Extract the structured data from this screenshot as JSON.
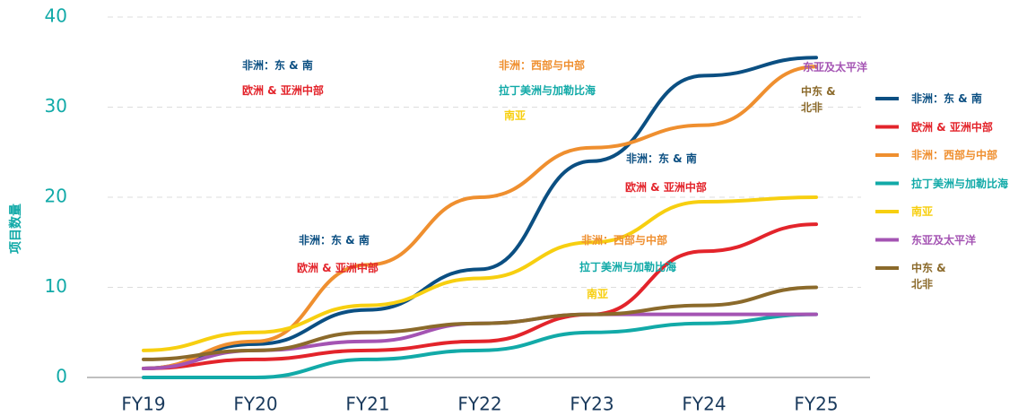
{
  "chart_data": {
    "type": "line",
    "y_label": "项目数量",
    "categories": [
      "FY19",
      "FY20",
      "FY21",
      "FY22",
      "FY23",
      "FY24",
      "FY25"
    ],
    "ylim": [
      0,
      40
    ],
    "yticks": [
      0,
      10,
      20,
      30,
      40
    ],
    "grid": true,
    "legend": "right",
    "series": [
      {
        "name": "非洲：东 & 南",
        "color": "#0b4f82",
        "values": [
          1,
          3.7,
          7.5,
          12,
          24,
          33.5,
          35.5
        ]
      },
      {
        "name": "欧洲 & 亚洲中部",
        "color": "#e3242b",
        "values": [
          1,
          2,
          3,
          4,
          7,
          14,
          17
        ]
      },
      {
        "name": "非洲：西部与中部",
        "color": "#ef8f2f",
        "values": [
          1,
          4,
          12.5,
          20,
          25.5,
          28,
          34.5
        ]
      },
      {
        "name": "拉丁美洲与加勒比海",
        "color": "#12aaa8",
        "values": [
          0,
          0,
          2,
          3,
          5,
          6,
          7
        ]
      },
      {
        "name": "南亚",
        "color": "#f7cf10",
        "values": [
          3,
          5,
          8,
          11,
          15,
          19.5,
          20
        ]
      },
      {
        "name": "东亚及太平洋",
        "color": "#a454b3",
        "values": [
          1,
          3,
          4,
          6,
          7,
          7,
          7
        ]
      },
      {
        "name": "中东 &\n北非",
        "color": "#8b6a2b",
        "values": [
          2,
          3,
          5,
          6,
          7,
          8,
          10
        ]
      }
    ],
    "annotations": [
      {
        "text": "非洲：东 & 南",
        "color": "#0b4f82"
      },
      {
        "text": "欧洲 & 亚洲中部",
        "color": "#e3242b"
      },
      {
        "text": "非洲：西部与中部",
        "color": "#ef8f2f"
      },
      {
        "text": "拉丁美洲与加勒比海",
        "color": "#12aaa8"
      },
      {
        "text": "南亚",
        "color": "#f7cf10"
      },
      {
        "text": "东亚及太平洋",
        "color": "#a454b3"
      },
      {
        "text": "中东 &\n北非",
        "color": "#8b6a2b"
      },
      {
        "text": "非洲：东 & 南",
        "color": "#0b4f82"
      },
      {
        "text": "欧洲 & 亚洲中部",
        "color": "#e3242b"
      },
      {
        "text": "非洲：东 & 南",
        "color": "#0b4f82"
      },
      {
        "text": "欧洲 & 亚洲中部",
        "color": "#e3242b"
      },
      {
        "text": "非洲：西部与中部",
        "color": "#ef8f2f"
      },
      {
        "text": "拉丁美洲与加勒比海",
        "color": "#12aaa8"
      },
      {
        "text": "南亚",
        "color": "#f7cf10"
      }
    ]
  }
}
